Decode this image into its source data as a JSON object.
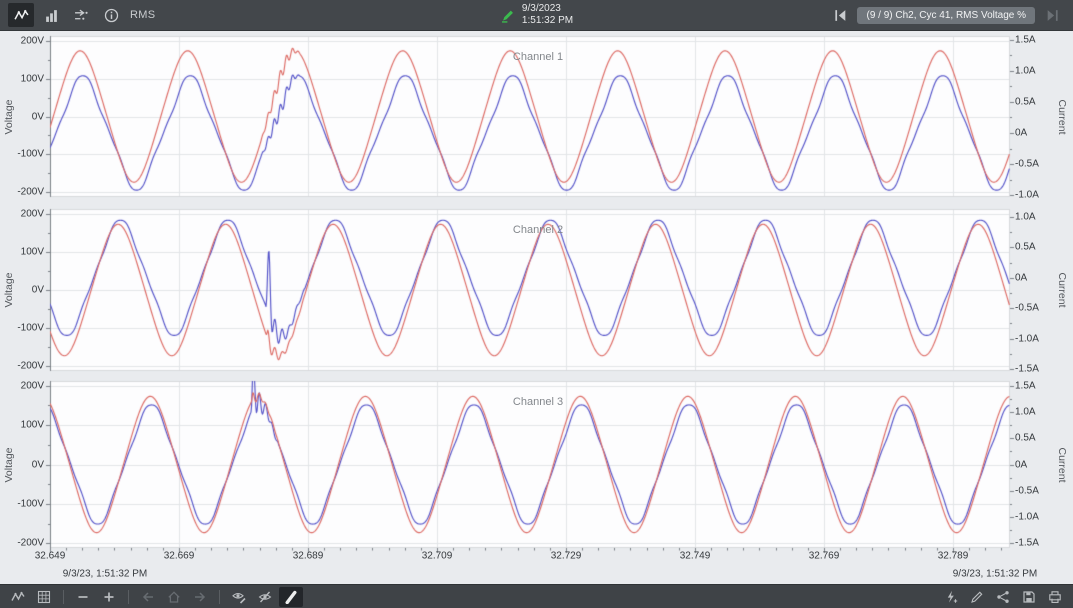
{
  "topbar": {
    "mode_label": "RMS",
    "left_buttons": [
      {
        "button": "waveform-view-button",
        "icon": "line-chart-icon",
        "active": true
      },
      {
        "button": "bar-view-button",
        "icon": "bar-chart-icon"
      },
      {
        "button": "compare-view-button",
        "icon": "compare-arrows-icon"
      },
      {
        "button": "info-button",
        "icon": "info-icon"
      }
    ],
    "event": {
      "icon": "event-marker-icon",
      "date": "9/3/2023",
      "time": "1:51:32 PM"
    },
    "nav": {
      "prev_button": {
        "button": "event-first-button",
        "icon": "skip-first-icon"
      },
      "badge": "(9 / 9) Ch2, Cyc 41, RMS Voltage %",
      "next_button": {
        "button": "event-last-button",
        "icon": "skip-last-icon",
        "disabled": true
      }
    }
  },
  "bottombar": {
    "left_buttons": [
      {
        "button": "waveform-tool-button",
        "icon": "line-chart-icon"
      },
      {
        "button": "grid-view-button",
        "icon": "grid-view-icon"
      },
      {
        "sep": true
      },
      {
        "button": "zoom-out-button",
        "icon": "zoom-out-icon"
      },
      {
        "button": "zoom-in-button",
        "icon": "zoom-in-icon"
      },
      {
        "sep": true
      },
      {
        "button": "nav-back-button",
        "icon": "arrow-left-icon",
        "disabled": true
      },
      {
        "button": "nav-home-button",
        "icon": "home-icon",
        "disabled": true
      },
      {
        "button": "nav-forward-button",
        "icon": "arrow-right-icon",
        "disabled": true
      },
      {
        "sep": true
      },
      {
        "button": "annotations-show-button",
        "icon": "eye-edit-icon"
      },
      {
        "button": "annotations-hide-button",
        "icon": "eye-off-icon"
      },
      {
        "button": "marker-tool-button",
        "icon": "marker-icon",
        "active": true
      }
    ],
    "right_buttons": [
      {
        "button": "add-event-button",
        "icon": "lightning-add-icon"
      },
      {
        "button": "edit-button",
        "icon": "pencil-icon"
      },
      {
        "button": "share-button",
        "icon": "share-icon"
      },
      {
        "button": "save-button",
        "icon": "save-icon"
      },
      {
        "button": "print-button",
        "icon": "print-icon"
      }
    ]
  },
  "chart_data": {
    "type": "line",
    "grid": true,
    "legend": false,
    "frequency_hz": 60,
    "voltage_color": "#dd6a64",
    "current_color": "#5352c9",
    "x_axis": {
      "units": "s",
      "start": 32.649,
      "tick_step": 0.02,
      "tick_values": [
        32.649,
        32.669,
        32.689,
        32.709,
        32.729,
        32.749,
        32.769,
        32.789
      ],
      "tick_labels": [
        "32.649",
        "32.669",
        "32.689",
        "32.709",
        "32.729",
        "32.749",
        "32.769",
        "32.789"
      ],
      "date_left": "9/3/23, 1:51:32 PM",
      "date_right": "9/3/23, 1:51:32 PM"
    },
    "channels": [
      {
        "title": "Channel 1",
        "y_left": {
          "label": "Voltage",
          "tick_labels": [
            "200V",
            "100V",
            "0V",
            "-100V",
            "-200V"
          ],
          "tick_values": [
            200,
            100,
            0,
            -100,
            -200
          ],
          "range": [
            -212,
            212
          ]
        },
        "y_right": {
          "label": "Current",
          "tick_labels": [
            "1.5A",
            "1.0A",
            "0.5A",
            "0A",
            "-0.5A",
            "-1.0A"
          ],
          "tick_values": [
            1.5,
            1.0,
            0.5,
            0,
            -0.5,
            -1.0
          ],
          "range": [
            -1.03,
            1.56
          ]
        },
        "voltage": {
          "amplitude": 168,
          "phase_deg": -11,
          "harm3": 0.03
        },
        "current": {
          "amplitude": 0.86,
          "phase_deg": -20,
          "harm3": 0.09,
          "harm7": 0.02
        },
        "disturbance": {
          "time": 32.6816,
          "duration": 0.0062,
          "freq_hz": 1050,
          "window": "symmetric",
          "v_amp": 16,
          "i_amp": 0.1,
          "i_spike": 0
        }
      },
      {
        "title": "Channel 2",
        "y_left": {
          "label": "Voltage",
          "tick_labels": [
            "200V",
            "100V",
            "0V",
            "-100V",
            "-200V"
          ],
          "tick_values": [
            200,
            100,
            0,
            -100,
            -200
          ],
          "range": [
            -212,
            212
          ]
        },
        "y_right": {
          "label": "Current",
          "tick_labels": [
            "1.0A",
            "0.5A",
            "0A",
            "-0.5A",
            "-1.0A",
            "-1.5A"
          ],
          "tick_values": [
            1.0,
            0.5,
            0,
            -0.5,
            -1.0,
            -1.5
          ],
          "range": [
            -1.53,
            1.13
          ]
        },
        "voltage": {
          "amplitude": 167,
          "phase_deg": -138,
          "harm3": 0.03
        },
        "current": {
          "amplitude": 0.9,
          "phase_deg": -146,
          "harm3": 0.07,
          "harm7": 0.02
        },
        "disturbance": {
          "time": 32.6825,
          "duration": 0.006,
          "freq_hz": 900,
          "window": "decay",
          "v_amp": 30,
          "i_amp": 0.4,
          "i_spike": 0.9
        }
      },
      {
        "title": "Channel 3",
        "y_left": {
          "label": "Voltage",
          "tick_labels": [
            "200V",
            "100V",
            "0V",
            "-100V",
            "-200V"
          ],
          "tick_values": [
            200,
            100,
            0,
            -100,
            -200
          ],
          "range": [
            -212,
            212
          ]
        },
        "y_right": {
          "label": "Current",
          "tick_labels": [
            "1.5A",
            "1.0A",
            "0.5A",
            "0A",
            "-0.5A",
            "-1.0A",
            "-1.5A"
          ],
          "tick_values": [
            1.5,
            1.0,
            0.5,
            0,
            -0.5,
            -1.0,
            -1.5
          ],
          "range": [
            -1.59,
            1.59
          ]
        },
        "voltage": {
          "amplitude": 168,
          "phase_deg": -246,
          "harm3": 0.03
        },
        "current": {
          "amplitude": 1.08,
          "phase_deg": -250,
          "harm3": 0.07,
          "harm7": 0.02
        },
        "disturbance": {
          "time": 32.6802,
          "duration": 0.0042,
          "freq_hz": 1000,
          "window": "decay",
          "v_amp": 22,
          "i_amp": 0.6,
          "i_spike": 0.55
        }
      }
    ]
  }
}
